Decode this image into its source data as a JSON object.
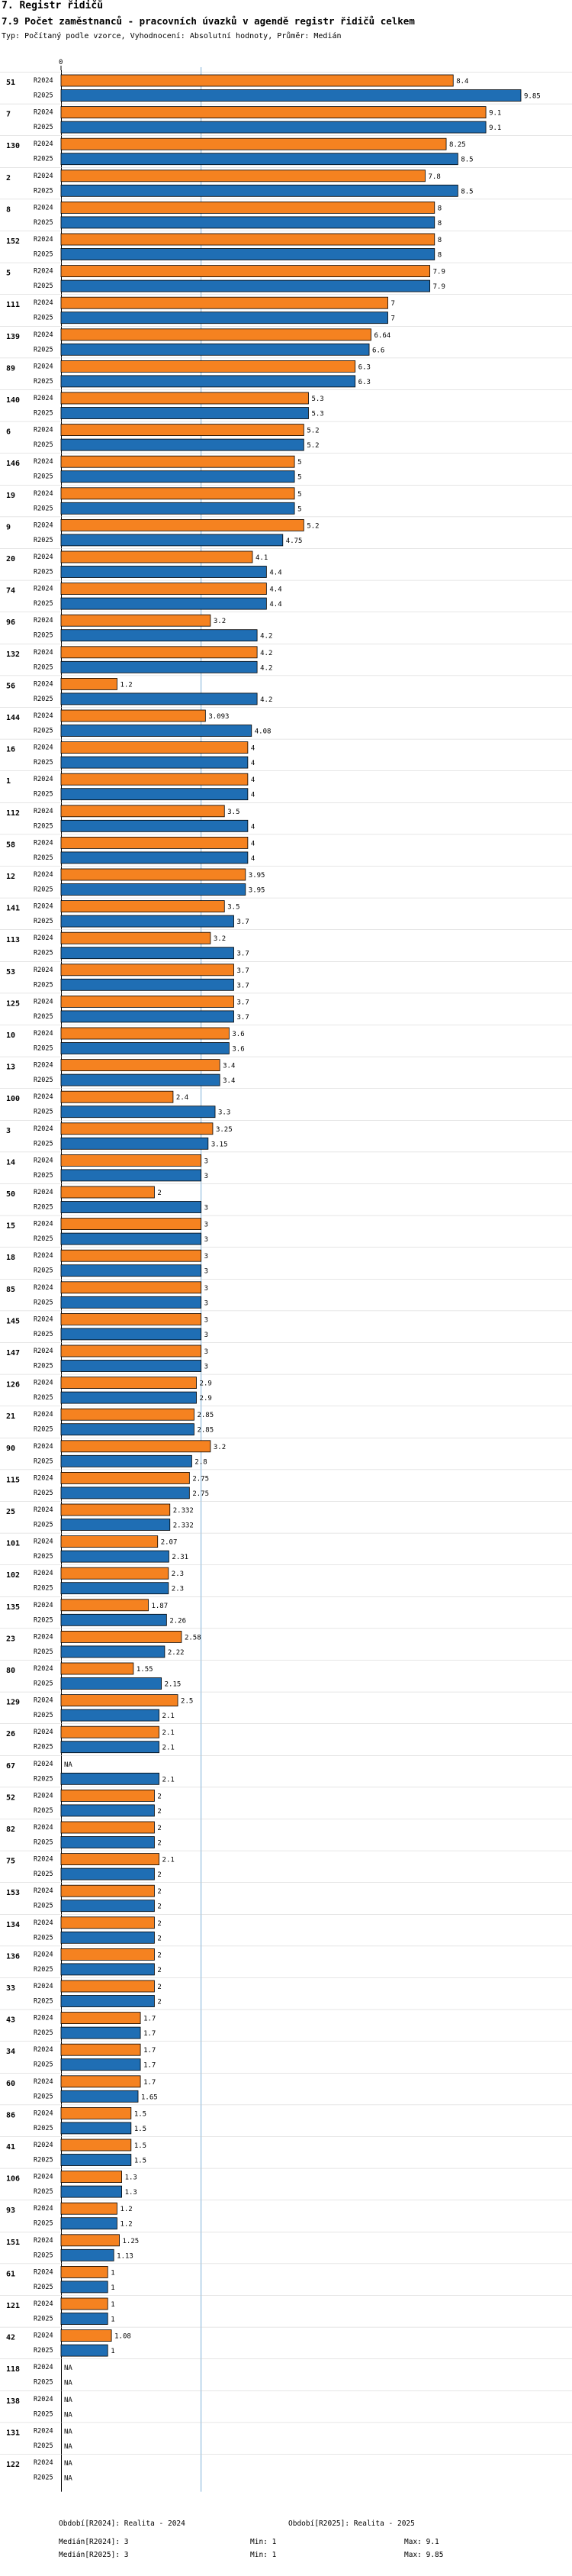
{
  "header": {
    "section_title": "7. Registr řidičů",
    "indicator_title": "7.9 Počet zaměstnanců - pracovních úvazků v agendě registr řidičů celkem",
    "subtitle": "Typ: Počítaný podle vzorce, Vyhodnocení: Absolutní hodnoty, Průměr: Medián"
  },
  "colors": {
    "r2024": "#f58220",
    "r2025": "#1f6eb4",
    "median_line": "#7fb0d8",
    "grid": "#cccccc"
  },
  "chart_data": {
    "type": "bar",
    "orientation": "horizontal",
    "title": "7.9 Počet zaměstnanců - pracovních úvazků v agendě registr řidičů celkem",
    "x_axis_tick": "0",
    "xlim": [
      0,
      9.85
    ],
    "median_value": 3,
    "series_names": [
      "R2024",
      "R2025"
    ],
    "na_label": "NA",
    "groups": [
      {
        "id": "51",
        "values": [
          8.4,
          9.85
        ],
        "labels": [
          "8.4",
          "9.85"
        ]
      },
      {
        "id": "7",
        "values": [
          9.1,
          9.1
        ],
        "labels": [
          "9.1",
          "9.1"
        ]
      },
      {
        "id": "130",
        "values": [
          8.25,
          8.5
        ],
        "labels": [
          "8.25",
          "8.5"
        ]
      },
      {
        "id": "2",
        "values": [
          7.8,
          8.5
        ],
        "labels": [
          "7.8",
          "8.5"
        ]
      },
      {
        "id": "8",
        "values": [
          8,
          8
        ],
        "labels": [
          "8",
          "8"
        ]
      },
      {
        "id": "152",
        "values": [
          8,
          8
        ],
        "labels": [
          "8",
          "8"
        ]
      },
      {
        "id": "5",
        "values": [
          7.9,
          7.9
        ],
        "labels": [
          "7.9",
          "7.9"
        ]
      },
      {
        "id": "111",
        "values": [
          7,
          7
        ],
        "labels": [
          "7",
          "7"
        ]
      },
      {
        "id": "139",
        "values": [
          6.64,
          6.6
        ],
        "labels": [
          "6.64",
          "6.6"
        ]
      },
      {
        "id": "89",
        "values": [
          6.3,
          6.3
        ],
        "labels": [
          "6.3",
          "6.3"
        ]
      },
      {
        "id": "140",
        "values": [
          5.3,
          5.3
        ],
        "labels": [
          "5.3",
          "5.3"
        ]
      },
      {
        "id": "6",
        "values": [
          5.2,
          5.2
        ],
        "labels": [
          "5.2",
          "5.2"
        ]
      },
      {
        "id": "146",
        "values": [
          5,
          5
        ],
        "labels": [
          "5",
          "5"
        ]
      },
      {
        "id": "19",
        "values": [
          5,
          5
        ],
        "labels": [
          "5",
          "5"
        ]
      },
      {
        "id": "9",
        "values": [
          5.2,
          4.75
        ],
        "labels": [
          "5.2",
          "4.75"
        ]
      },
      {
        "id": "20",
        "values": [
          4.1,
          4.4
        ],
        "labels": [
          "4.1",
          "4.4"
        ]
      },
      {
        "id": "74",
        "values": [
          4.4,
          4.4
        ],
        "labels": [
          "4.4",
          "4.4"
        ]
      },
      {
        "id": "96",
        "values": [
          3.2,
          4.2
        ],
        "labels": [
          "3.2",
          "4.2"
        ]
      },
      {
        "id": "132",
        "values": [
          4.2,
          4.2
        ],
        "labels": [
          "4.2",
          "4.2"
        ]
      },
      {
        "id": "56",
        "values": [
          1.2,
          4.2
        ],
        "labels": [
          "1.2",
          "4.2"
        ]
      },
      {
        "id": "144",
        "values": [
          3.093,
          4.08
        ],
        "labels": [
          "3.093",
          "4.08"
        ]
      },
      {
        "id": "16",
        "values": [
          4,
          4
        ],
        "labels": [
          "4",
          "4"
        ]
      },
      {
        "id": "1",
        "values": [
          4,
          4
        ],
        "labels": [
          "4",
          "4"
        ]
      },
      {
        "id": "112",
        "values": [
          3.5,
          4
        ],
        "labels": [
          "3.5",
          "4"
        ]
      },
      {
        "id": "58",
        "values": [
          4,
          4
        ],
        "labels": [
          "4",
          "4"
        ]
      },
      {
        "id": "12",
        "values": [
          3.95,
          3.95
        ],
        "labels": [
          "3.95",
          "3.95"
        ]
      },
      {
        "id": "141",
        "values": [
          3.5,
          3.7
        ],
        "labels": [
          "3.5",
          "3.7"
        ]
      },
      {
        "id": "113",
        "values": [
          3.2,
          3.7
        ],
        "labels": [
          "3.2",
          "3.7"
        ]
      },
      {
        "id": "53",
        "values": [
          3.7,
          3.7
        ],
        "labels": [
          "3.7",
          "3.7"
        ]
      },
      {
        "id": "125",
        "values": [
          3.7,
          3.7
        ],
        "labels": [
          "3.7",
          "3.7"
        ]
      },
      {
        "id": "10",
        "values": [
          3.6,
          3.6
        ],
        "labels": [
          "3.6",
          "3.6"
        ]
      },
      {
        "id": "13",
        "values": [
          3.4,
          3.4
        ],
        "labels": [
          "3.4",
          "3.4"
        ]
      },
      {
        "id": "100",
        "values": [
          2.4,
          3.3
        ],
        "labels": [
          "2.4",
          "3.3"
        ]
      },
      {
        "id": "3",
        "values": [
          3.25,
          3.15
        ],
        "labels": [
          "3.25",
          "3.15"
        ]
      },
      {
        "id": "14",
        "values": [
          3,
          3
        ],
        "labels": [
          "3",
          "3"
        ]
      },
      {
        "id": "50",
        "values": [
          2,
          3
        ],
        "labels": [
          "2",
          "3"
        ]
      },
      {
        "id": "15",
        "values": [
          3,
          3
        ],
        "labels": [
          "3",
          "3"
        ]
      },
      {
        "id": "18",
        "values": [
          3,
          3
        ],
        "labels": [
          "3",
          "3"
        ]
      },
      {
        "id": "85",
        "values": [
          3,
          3
        ],
        "labels": [
          "3",
          "3"
        ]
      },
      {
        "id": "145",
        "values": [
          3,
          3
        ],
        "labels": [
          "3",
          "3"
        ]
      },
      {
        "id": "147",
        "values": [
          3,
          3
        ],
        "labels": [
          "3",
          "3"
        ]
      },
      {
        "id": "126",
        "values": [
          2.9,
          2.9
        ],
        "labels": [
          "2.9",
          "2.9"
        ]
      },
      {
        "id": "21",
        "values": [
          2.85,
          2.85
        ],
        "labels": [
          "2.85",
          "2.85"
        ]
      },
      {
        "id": "90",
        "values": [
          3.2,
          2.8
        ],
        "labels": [
          "3.2",
          "2.8"
        ]
      },
      {
        "id": "115",
        "values": [
          2.75,
          2.75
        ],
        "labels": [
          "2.75",
          "2.75"
        ]
      },
      {
        "id": "25",
        "values": [
          2.332,
          2.332
        ],
        "labels": [
          "2.332",
          "2.332"
        ]
      },
      {
        "id": "101",
        "values": [
          2.07,
          2.31
        ],
        "labels": [
          "2.07",
          "2.31"
        ]
      },
      {
        "id": "102",
        "values": [
          2.3,
          2.3
        ],
        "labels": [
          "2.3",
          "2.3"
        ]
      },
      {
        "id": "135",
        "values": [
          1.87,
          2.26
        ],
        "labels": [
          "1.87",
          "2.26"
        ]
      },
      {
        "id": "23",
        "values": [
          2.58,
          2.22
        ],
        "labels": [
          "2.58",
          "2.22"
        ]
      },
      {
        "id": "80",
        "values": [
          1.55,
          2.15
        ],
        "labels": [
          "1.55",
          "2.15"
        ]
      },
      {
        "id": "129",
        "values": [
          2.5,
          2.1
        ],
        "labels": [
          "2.5",
          "2.1"
        ]
      },
      {
        "id": "26",
        "values": [
          2.1,
          2.1
        ],
        "labels": [
          "2.1",
          "2.1"
        ]
      },
      {
        "id": "67",
        "values": [
          null,
          2.1
        ],
        "labels": [
          "NA",
          "2.1"
        ]
      },
      {
        "id": "52",
        "values": [
          2,
          2
        ],
        "labels": [
          "2",
          "2"
        ]
      },
      {
        "id": "82",
        "values": [
          2,
          2
        ],
        "labels": [
          "2",
          "2"
        ]
      },
      {
        "id": "75",
        "values": [
          2.1,
          2
        ],
        "labels": [
          "2.1",
          "2"
        ]
      },
      {
        "id": "153",
        "values": [
          2,
          2
        ],
        "labels": [
          "2",
          "2"
        ]
      },
      {
        "id": "134",
        "values": [
          2,
          2
        ],
        "labels": [
          "2",
          "2"
        ]
      },
      {
        "id": "136",
        "values": [
          2,
          2
        ],
        "labels": [
          "2",
          "2"
        ]
      },
      {
        "id": "33",
        "values": [
          2,
          2
        ],
        "labels": [
          "2",
          "2"
        ]
      },
      {
        "id": "43",
        "values": [
          1.7,
          1.7
        ],
        "labels": [
          "1.7",
          "1.7"
        ]
      },
      {
        "id": "34",
        "values": [
          1.7,
          1.7
        ],
        "labels": [
          "1.7",
          "1.7"
        ]
      },
      {
        "id": "60",
        "values": [
          1.7,
          1.65
        ],
        "labels": [
          "1.7",
          "1.65"
        ]
      },
      {
        "id": "86",
        "values": [
          1.5,
          1.5
        ],
        "labels": [
          "1.5",
          "1.5"
        ]
      },
      {
        "id": "41",
        "values": [
          1.5,
          1.5
        ],
        "labels": [
          "1.5",
          "1.5"
        ]
      },
      {
        "id": "106",
        "values": [
          1.3,
          1.3
        ],
        "labels": [
          "1.3",
          "1.3"
        ]
      },
      {
        "id": "93",
        "values": [
          1.2,
          1.2
        ],
        "labels": [
          "1.2",
          "1.2"
        ]
      },
      {
        "id": "151",
        "values": [
          1.25,
          1.13
        ],
        "labels": [
          "1.25",
          "1.13"
        ]
      },
      {
        "id": "61",
        "values": [
          1,
          1
        ],
        "labels": [
          "1",
          "1"
        ]
      },
      {
        "id": "121",
        "values": [
          1,
          1
        ],
        "labels": [
          "1",
          "1"
        ]
      },
      {
        "id": "42",
        "values": [
          1.08,
          1
        ],
        "labels": [
          "1.08",
          "1"
        ]
      },
      {
        "id": "118",
        "values": [
          null,
          null
        ],
        "labels": [
          "NA",
          "NA"
        ]
      },
      {
        "id": "138",
        "values": [
          null,
          null
        ],
        "labels": [
          "NA",
          "NA"
        ]
      },
      {
        "id": "131",
        "values": [
          null,
          null
        ],
        "labels": [
          "NA",
          "NA"
        ]
      },
      {
        "id": "122",
        "values": [
          null,
          null
        ],
        "labels": [
          "NA",
          "NA"
        ]
      }
    ]
  },
  "footer": {
    "period_2024": "Období[R2024]: Realita - 2024",
    "period_2025": "Období[R2025]: Realita - 2025",
    "median_2024": "Medián[R2024]: 3",
    "median_2025": "Medián[R2025]: 3",
    "min_2024": "Min: 1",
    "min_2025": "Min: 1",
    "max_2024": "Max: 9.1",
    "max_2025": "Max: 9.85"
  }
}
